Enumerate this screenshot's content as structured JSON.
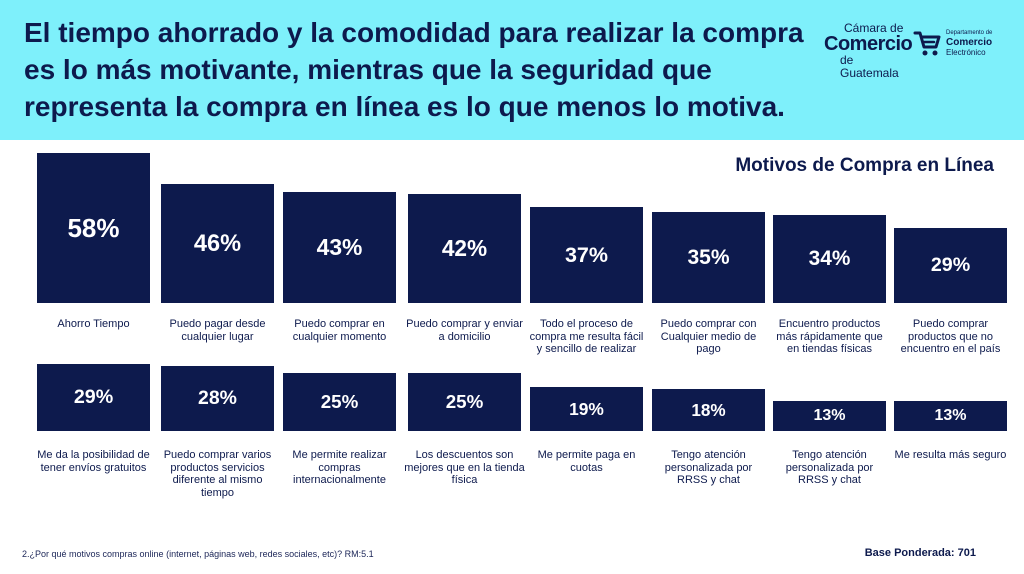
{
  "header": {
    "headline": "El tiempo ahorrado y la comodidad para realizar la compra es lo más motivante, mientras que la seguridad que representa la compra en línea es lo que menos lo motiva.",
    "logo_camara": {
      "line1": "Cámara de",
      "line2": "Comercio",
      "line3": "de Guatemala"
    },
    "logo_depto": {
      "line1": "Departamento de",
      "line2": "Comercio",
      "line3": "Electrónico"
    }
  },
  "colors": {
    "header_bg": "#7ef0fb",
    "bar": "#0d1a4d",
    "text": "#0d1a4d"
  },
  "chart_data": {
    "type": "bar",
    "title": "Motivos de Compra en Línea",
    "categories": [
      "Ahorro Tiempo",
      "Puedo pagar desde cualquier lugar",
      "Puedo comprar en cualquier momento",
      "Puedo comprar y enviar a domicilio",
      "Todo el proceso de compra me resulta fácil y sencillo de realizar",
      "Puedo comprar con Cualquier medio de pago",
      "Encuentro productos más rápidamente que en tiendas físicas",
      "Puedo comprar productos que no encuentro en el país",
      "Me da la posibilidad de tener envíos gratuitos",
      "Puedo comprar varios productos servicios diferente al mismo tiempo",
      "Me permite realizar compras internacionalmente",
      "Los descuentos son mejores que en la tienda física",
      "Me permite paga en cuotas",
      "Tengo atención personalizada por RRSS y chat",
      "Tengo atención personalizada por RRSS y chat",
      "Me resulta más seguro"
    ],
    "values": [
      58,
      46,
      43,
      42,
      37,
      35,
      34,
      29,
      29,
      28,
      25,
      25,
      19,
      18,
      13,
      13
    ],
    "labels": [
      "58%",
      "46%",
      "43%",
      "42%",
      "37%",
      "35%",
      "34%",
      "29%",
      "29%",
      "28%",
      "25%",
      "25%",
      "19%",
      "18%",
      "13%",
      "13%"
    ],
    "unit": "%"
  },
  "footer": {
    "footnote": "2.¿Por qué motivos compras online (internet, páginas web, redes sociales, etc)? RM:5.1",
    "base": "Base Ponderada: 701"
  }
}
